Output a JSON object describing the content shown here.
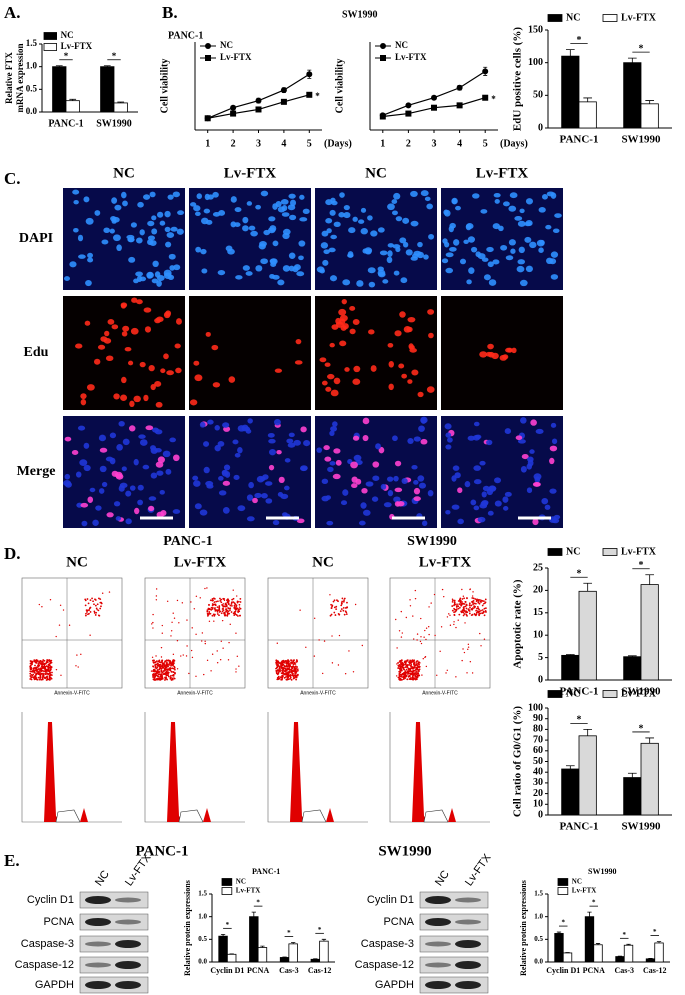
{
  "panels": {
    "A": "A.",
    "B": "B.",
    "C": "C.",
    "D": "D.",
    "E": "E."
  },
  "imaging": {
    "columns": [
      "NC",
      "Lv-FTX",
      "NC",
      "Lv-FTX"
    ],
    "rows": [
      "DAPI",
      "Edu",
      "Merge"
    ]
  },
  "flow": {
    "groups": [
      "PANC-1",
      "SW1990"
    ],
    "columns": [
      "NC",
      "Lv-FTX",
      "NC",
      "Lv-FTX"
    ],
    "xlabel": "Annexin-V-FITC"
  },
  "blot": {
    "groups": [
      "PANC-1",
      "SW1990"
    ],
    "lanes": [
      "NC",
      "Lv-FTX"
    ],
    "rows": [
      "Cyclin D1",
      "PCNA",
      "Caspase-3",
      "Caspase-12",
      "GAPDH"
    ]
  },
  "chart_data": [
    {
      "type": "bar",
      "ylabel": [
        "Relative FTX",
        "mRNA expression"
      ],
      "categories": [
        "PANC-1",
        "SW1990"
      ],
      "series": [
        {
          "name": "NC",
          "color": "#000000",
          "values": [
            1.0,
            1.0
          ],
          "errors": [
            0.02,
            0.02
          ]
        },
        {
          "name": "Lv-FTX",
          "color": "#ffffff",
          "values": [
            0.25,
            0.2
          ],
          "errors": [
            0.03,
            0.02
          ]
        }
      ],
      "ylim": [
        0,
        1.5
      ],
      "yticks": [
        {
          "value": 0,
          "label": "0.0"
        },
        {
          "value": 0.5,
          "label": "0.5"
        },
        {
          "value": 1,
          "label": "1.0"
        },
        {
          "value": 1.5,
          "label": "1.5"
        }
      ],
      "annotations": [
        "*",
        "*"
      ]
    },
    {
      "type": "line",
      "title": "PANC-1",
      "ylabel": "Cell viability",
      "xlabel": "(Days)",
      "x": [
        1,
        2,
        3,
        4,
        5
      ],
      "xlim": [
        0.5,
        5.5
      ],
      "xticks": [
        1,
        2,
        3,
        4,
        5
      ],
      "ylim": [
        0,
        1.5
      ],
      "series": [
        {
          "name": "NC",
          "color": "#000000",
          "marker": "circle",
          "values": [
            0.2,
            0.38,
            0.5,
            0.68,
            0.95
          ],
          "errors": [
            0.01,
            0.02,
            0.04,
            0.04,
            0.07
          ]
        },
        {
          "name": "Lv-FTX",
          "color": "#000000",
          "marker": "square",
          "values": [
            0.2,
            0.28,
            0.35,
            0.48,
            0.6
          ],
          "errors": [
            0.01,
            0.01,
            0.02,
            0.03,
            0.03
          ]
        }
      ],
      "annotations": [
        "*"
      ]
    },
    {
      "type": "line",
      "title": "SW1990",
      "ylabel": "Cell viability",
      "xlabel": "(Days)",
      "x": [
        1,
        2,
        3,
        4,
        5
      ],
      "xlim": [
        0.5,
        5.5
      ],
      "xticks": [
        1,
        2,
        3,
        4,
        5
      ],
      "ylim": [
        0,
        1.5
      ],
      "series": [
        {
          "name": "NC",
          "color": "#000000",
          "marker": "circle",
          "values": [
            0.25,
            0.42,
            0.55,
            0.72,
            1.0
          ],
          "errors": [
            0.01,
            0.02,
            0.03,
            0.04,
            0.07
          ]
        },
        {
          "name": "Lv-FTX",
          "color": "#000000",
          "marker": "square",
          "values": [
            0.23,
            0.28,
            0.38,
            0.42,
            0.55
          ],
          "errors": [
            0.01,
            0.01,
            0.02,
            0.02,
            0.03
          ]
        }
      ],
      "annotations": [
        "*"
      ]
    },
    {
      "type": "bar",
      "ylabel": "EdU positive cells (%)",
      "categories": [
        "PANC-1",
        "SW1990"
      ],
      "series": [
        {
          "name": "NC",
          "color": "#000000",
          "values": [
            110,
            100
          ],
          "errors": [
            10,
            7
          ]
        },
        {
          "name": "Lv-FTX",
          "color": "#ffffff",
          "values": [
            40,
            37
          ],
          "errors": [
            6,
            5
          ]
        }
      ],
      "ylim": [
        0,
        150
      ],
      "yticks": [
        0,
        50,
        100,
        150
      ],
      "annotations": [
        "*",
        "*"
      ]
    },
    {
      "type": "bar",
      "ylabel": "Apoptotic rate (%)",
      "categories": [
        "PANC-1",
        "SW1990"
      ],
      "series": [
        {
          "name": "NC",
          "color": "#000000",
          "values": [
            5.5,
            5.2
          ],
          "errors": [
            0.2,
            0.2
          ]
        },
        {
          "name": "Lv-FTX",
          "color": "#d9d9d9",
          "values": [
            19.8,
            21.3
          ],
          "errors": [
            1.8,
            2.2
          ]
        }
      ],
      "ylim": [
        0,
        25
      ],
      "yticks": [
        0,
        5,
        10,
        15,
        20,
        25
      ],
      "annotations": [
        "*",
        "*"
      ]
    },
    {
      "type": "bar",
      "ylabel": "Cell ratio of G0/G1 (%)",
      "categories": [
        "PANC-1",
        "SW1990"
      ],
      "series": [
        {
          "name": "NC",
          "color": "#000000",
          "values": [
            43,
            35
          ],
          "errors": [
            3,
            4
          ]
        },
        {
          "name": "Lv-FTX",
          "color": "#d9d9d9",
          "values": [
            74,
            67
          ],
          "errors": [
            6,
            5
          ]
        }
      ],
      "ylim": [
        0,
        100
      ],
      "yticks": [
        0,
        10,
        20,
        30,
        40,
        50,
        60,
        70,
        80,
        90,
        100
      ],
      "annotations": [
        "*",
        "*"
      ]
    },
    {
      "type": "bar",
      "title": "PANC-1",
      "ylabel": "Relative protein expressions",
      "categories": [
        "Cyclin D1",
        "PCNA",
        "Cas-3",
        "Cas-12"
      ],
      "series": [
        {
          "name": "NC",
          "color": "#000000",
          "values": [
            0.57,
            1.0,
            0.1,
            0.06
          ],
          "errors": [
            0.04,
            0.1,
            0.01,
            0.01
          ]
        },
        {
          "name": "Lv-FTX",
          "color": "#ffffff",
          "values": [
            0.17,
            0.32,
            0.4,
            0.46
          ],
          "errors": [
            0.01,
            0.03,
            0.03,
            0.04
          ]
        }
      ],
      "ylim": [
        0,
        1.5
      ],
      "yticks": [
        {
          "value": 0,
          "label": "0.0"
        },
        {
          "value": 0.5,
          "label": "0.5"
        },
        {
          "value": 1,
          "label": "1.0"
        },
        {
          "value": 1.5,
          "label": "1.5"
        }
      ],
      "annotations": [
        "*",
        "*",
        "*",
        "*"
      ]
    },
    {
      "type": "bar",
      "title": "SW1990",
      "ylabel": "Relative protein expressions",
      "categories": [
        "Cyclin D1",
        "PCNA",
        "Cas-3",
        "Cas-12"
      ],
      "series": [
        {
          "name": "NC",
          "color": "#000000",
          "values": [
            0.63,
            1.0,
            0.12,
            0.07
          ],
          "errors": [
            0.03,
            0.1,
            0.01,
            0.01
          ]
        },
        {
          "name": "Lv-FTX",
          "color": "#ffffff",
          "values": [
            0.2,
            0.38,
            0.37,
            0.42
          ],
          "errors": [
            0.01,
            0.03,
            0.02,
            0.03
          ]
        }
      ],
      "ylim": [
        0,
        1.5
      ],
      "yticks": [
        {
          "value": 0,
          "label": "0.0"
        },
        {
          "value": 0.5,
          "label": "0.5"
        },
        {
          "value": 1,
          "label": "1.0"
        },
        {
          "value": 1.5,
          "label": "1.5"
        }
      ],
      "annotations": [
        "*",
        "*",
        "*",
        "*"
      ]
    }
  ]
}
